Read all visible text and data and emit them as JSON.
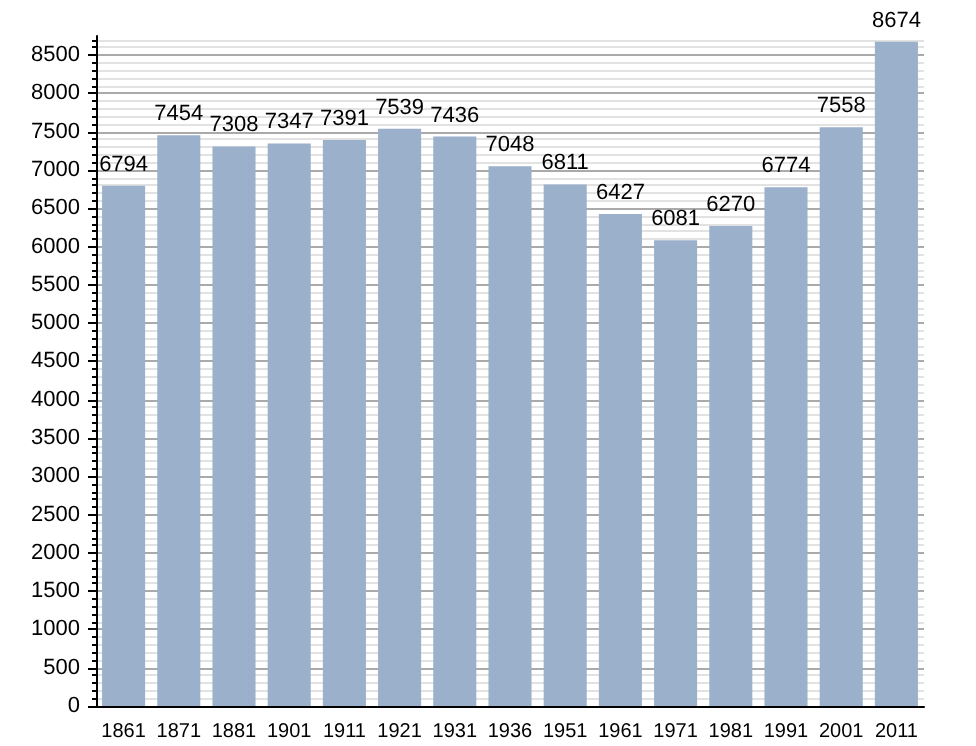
{
  "chart_data": {
    "type": "bar",
    "categories": [
      "1861",
      "1871",
      "1881",
      "1901",
      "1911",
      "1921",
      "1931",
      "1936",
      "1951",
      "1961",
      "1971",
      "1981",
      "1991",
      "2001",
      "2011"
    ],
    "values": [
      6794,
      7454,
      7308,
      7347,
      7391,
      7539,
      7436,
      7048,
      6811,
      6427,
      6081,
      6270,
      6774,
      7558,
      8674
    ],
    "color": "#9ab0cb",
    "ylim": [
      0,
      8750
    ],
    "yticks": [
      0,
      500,
      1000,
      1500,
      2000,
      2500,
      3000,
      3500,
      4000,
      4500,
      5000,
      5500,
      6000,
      6500,
      7000,
      7500,
      8000,
      8500
    ],
    "grid": "y",
    "data_labels": true
  }
}
